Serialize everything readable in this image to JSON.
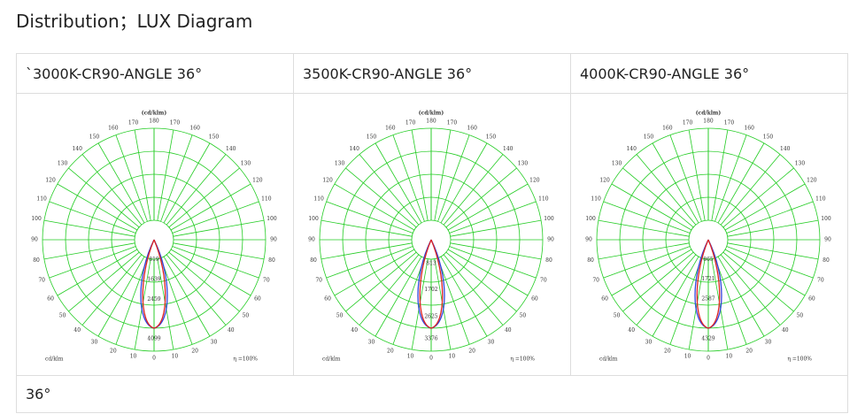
{
  "header": {
    "title": "Distribution；LUX Diagram"
  },
  "table": {
    "columns": [
      "`3000K-CR90-ANGLE 36°",
      "3500K-CR90-ANGLE 36°",
      "4000K-CR90-ANGLE 36°"
    ],
    "diagrams": [
      {
        "unit": "(cd/klm)",
        "angles": [
          0,
          10,
          20,
          30,
          40,
          50,
          60,
          70,
          80,
          90,
          100,
          110,
          120,
          130,
          140,
          150,
          160,
          170,
          180
        ],
        "rings": [
          819,
          1639,
          2459,
          4099
        ],
        "axis_unit": "cd/klm",
        "efficiency": "η =100%"
      },
      {
        "unit": "(cd/klm)",
        "angles": [
          0,
          10,
          20,
          30,
          40,
          50,
          60,
          70,
          80,
          90,
          100,
          110,
          120,
          130,
          140,
          150,
          160,
          170,
          180
        ],
        "rings": [
          813,
          1702,
          2625,
          3376
        ],
        "axis_unit": "cd/klm",
        "efficiency": "η =100%"
      },
      {
        "unit": "(cd/klm)",
        "angles": [
          0,
          10,
          20,
          30,
          40,
          50,
          60,
          70,
          80,
          90,
          100,
          110,
          120,
          130,
          140,
          150,
          160,
          170,
          180
        ],
        "rings": [
          865,
          1721,
          2587,
          4329
        ],
        "axis_unit": "cd/klm",
        "efficiency": "η =100%"
      }
    ],
    "footer": "36°"
  }
}
